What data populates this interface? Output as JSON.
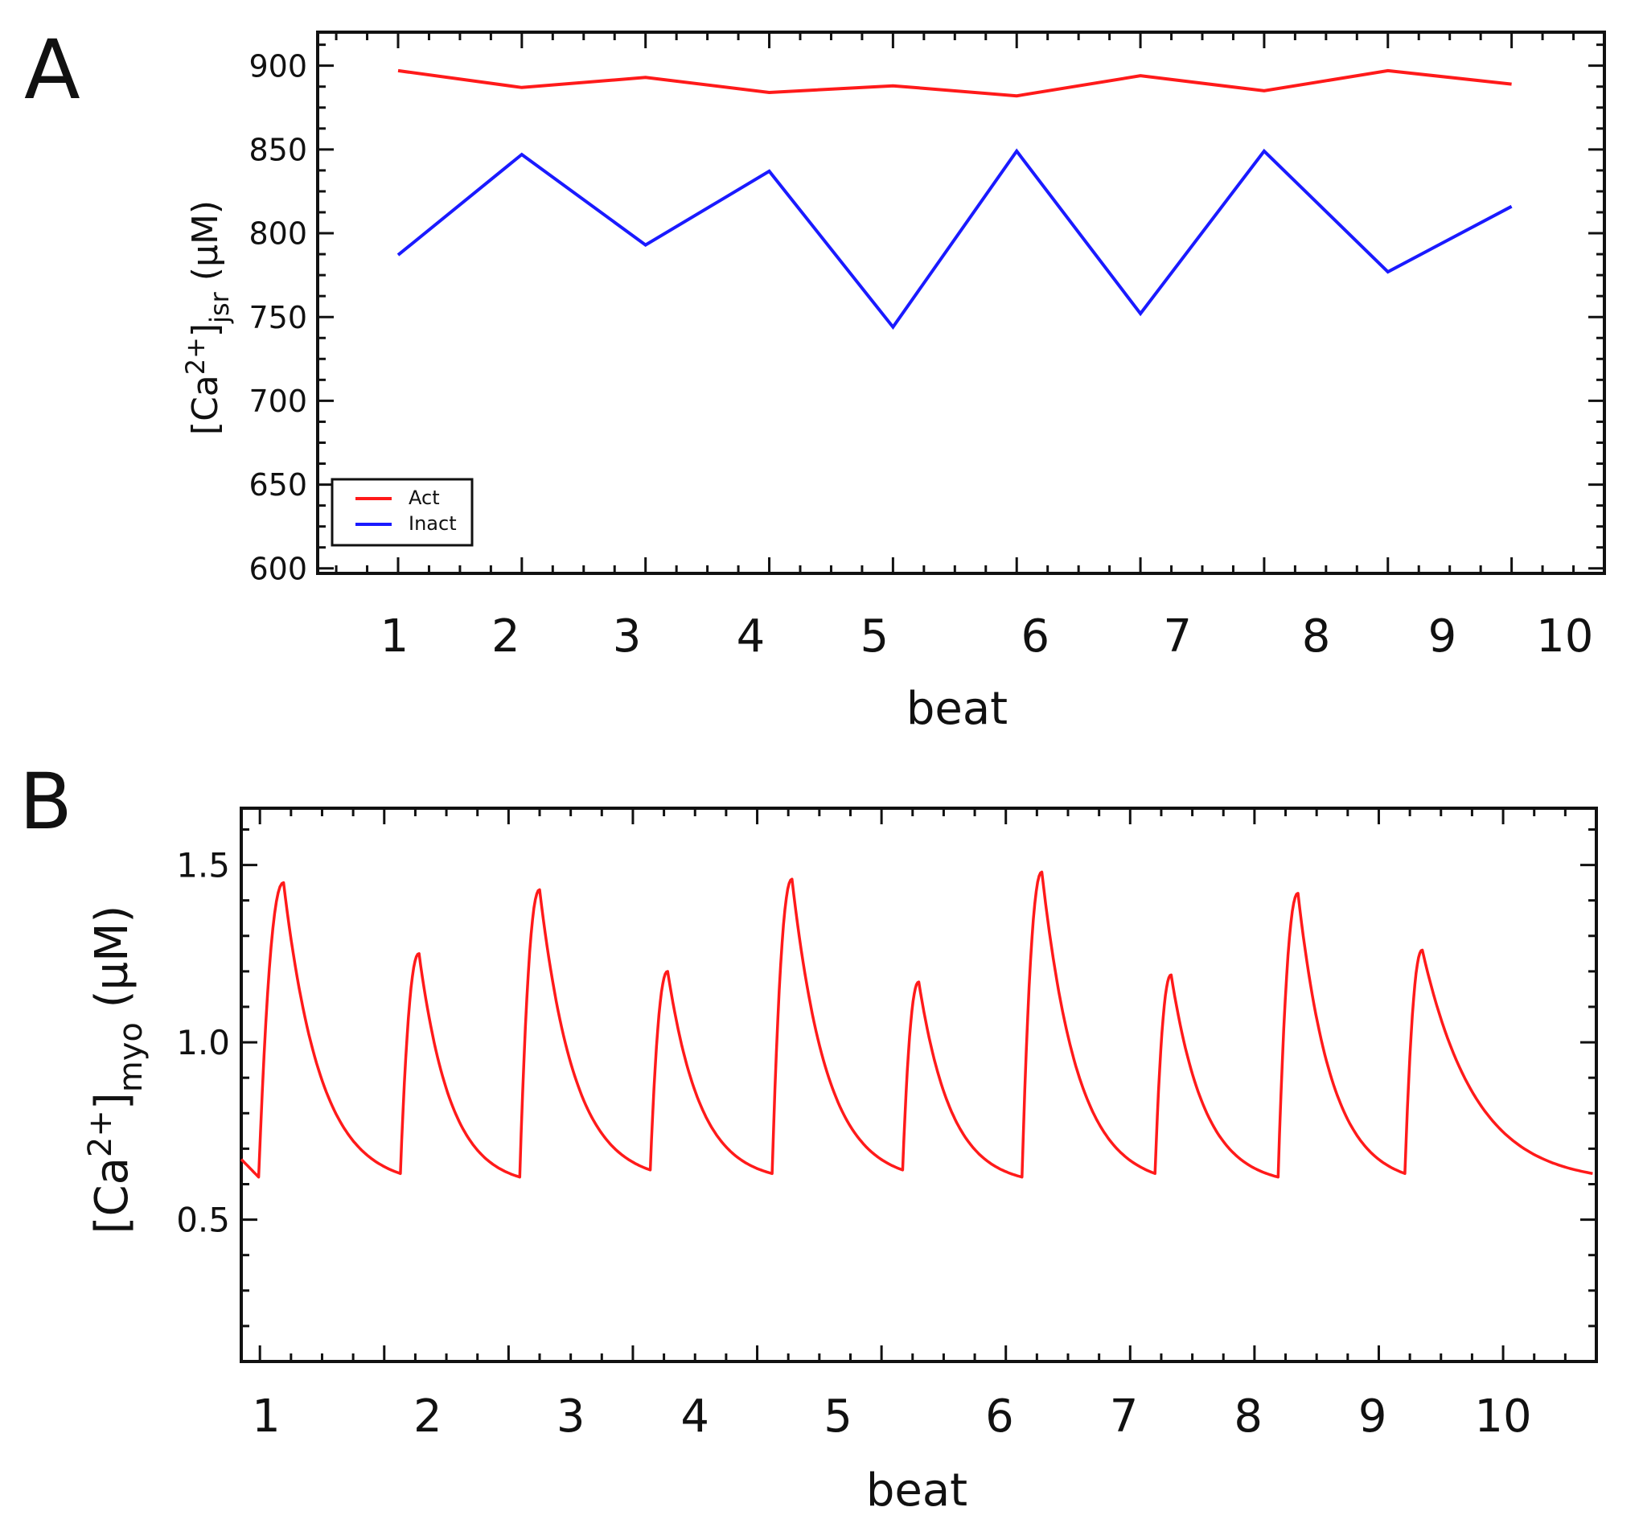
{
  "chart_data": [
    {
      "panel_label": "A",
      "type": "line",
      "xlabel": "beat",
      "ylabel": {
        "main": "[Ca",
        "superscript": "2+",
        "close": "]",
        "subscript": "jsr",
        "unit": " (µM)"
      },
      "ylim": [
        597,
        920
      ],
      "yticks": [
        600,
        650,
        700,
        750,
        800,
        850,
        900
      ],
      "ytick_labels": [
        "600",
        "650",
        "700",
        "750",
        "800",
        "850",
        "900"
      ],
      "xlim": [
        0.35,
        10.75
      ],
      "xtick_labels": [
        "1",
        "2",
        "3",
        "4",
        "5",
        "6",
        "7",
        "8",
        "9",
        "10"
      ],
      "xtick_label_positions": [
        0.97,
        1.87,
        2.85,
        3.85,
        4.85,
        6.15,
        7.3,
        8.42,
        9.44,
        10.43
      ],
      "legend": {
        "position": "bottom-left"
      },
      "series": [
        {
          "name": "Act",
          "color": "#ff1a1a",
          "x": [
            1,
            2,
            3,
            4,
            5,
            6,
            7,
            8,
            9,
            10
          ],
          "values": [
            897,
            887,
            893,
            884,
            888,
            882,
            894,
            885,
            897,
            889
          ]
        },
        {
          "name": "Inact",
          "color": "#1a1aff",
          "x": [
            1,
            2,
            3,
            4,
            5,
            6,
            7,
            8,
            9,
            10
          ],
          "values": [
            787,
            847,
            793,
            837,
            744,
            849,
            752,
            849,
            777,
            816
          ]
        }
      ]
    },
    {
      "panel_label": "B",
      "type": "line",
      "xlabel": "beat",
      "ylabel": {
        "main": "[Ca",
        "superscript": "2+",
        "close": "]",
        "subscript": "myo",
        "unit": " (µM)"
      },
      "ylim": [
        0.1,
        1.66
      ],
      "yticks": [
        0.5,
        1.0,
        1.5
      ],
      "ytick_labels": [
        "0.5",
        "1.0",
        "1.5"
      ],
      "xlim": [
        0.85,
        11.75
      ],
      "xtick_labels": [
        "1",
        "2",
        "3",
        "4",
        "5",
        "6",
        "7",
        "8",
        "9",
        "10"
      ],
      "xtick_label_positions": [
        1.05,
        2.35,
        3.5,
        4.5,
        5.65,
        6.95,
        7.95,
        8.95,
        9.95,
        11.0
      ],
      "series": [
        {
          "name": "[Ca2+]myo",
          "color": "#ff1a1a",
          "start": {
            "t": 0.85,
            "value": 0.67
          },
          "beats": [
            {
              "onset": 0.99,
              "rest": 0.62,
              "peak_time": 1.19,
              "peak": 1.45
            },
            {
              "onset": 2.13,
              "rest": 0.63,
              "peak_time": 2.28,
              "peak": 1.25
            },
            {
              "onset": 3.09,
              "rest": 0.62,
              "peak_time": 3.25,
              "peak": 1.43
            },
            {
              "onset": 4.14,
              "rest": 0.64,
              "peak_time": 4.28,
              "peak": 1.2
            },
            {
              "onset": 5.12,
              "rest": 0.63,
              "peak_time": 5.28,
              "peak": 1.46
            },
            {
              "onset": 6.17,
              "rest": 0.64,
              "peak_time": 6.3,
              "peak": 1.17
            },
            {
              "onset": 7.13,
              "rest": 0.62,
              "peak_time": 7.29,
              "peak": 1.48
            },
            {
              "onset": 8.2,
              "rest": 0.63,
              "peak_time": 8.33,
              "peak": 1.19
            },
            {
              "onset": 9.19,
              "rest": 0.62,
              "peak_time": 9.35,
              "peak": 1.42
            },
            {
              "onset": 10.21,
              "rest": 0.63,
              "peak_time": 10.35,
              "peak": 1.26
            }
          ],
          "end": {
            "t": 11.72,
            "value": 0.63
          }
        }
      ]
    }
  ]
}
